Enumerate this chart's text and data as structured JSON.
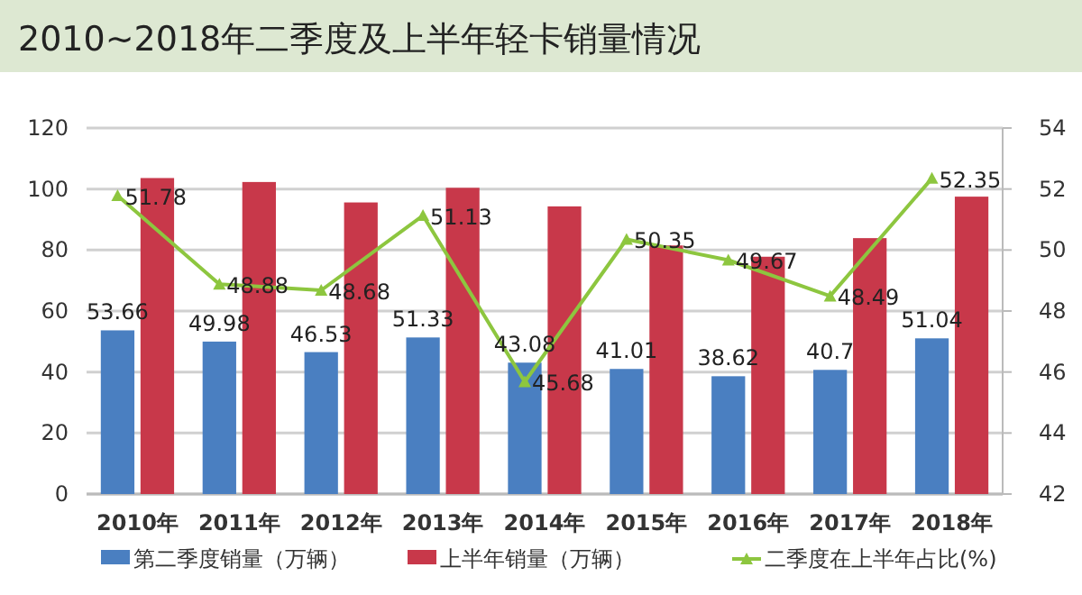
{
  "chart_data": {
    "type": "bar",
    "title": "2010~2018年二季度及上半年轻卡销量情况",
    "categories": [
      "2010年",
      "2011年",
      "2012年",
      "2013年",
      "2014年",
      "2015年",
      "2016年",
      "2017年",
      "2018年"
    ],
    "series": [
      {
        "name": "第二季度销量（万辆）",
        "color": "#4a7fc1",
        "values": [
          53.66,
          49.98,
          46.53,
          51.33,
          43.08,
          41.01,
          38.62,
          40.7,
          51.04
        ],
        "value_labels": [
          "53.66",
          "49.98",
          "46.53",
          "51.33",
          "43.08",
          "41.01",
          "38.62",
          "40.7",
          "51.04"
        ]
      },
      {
        "name": "上半年销量（万辆）",
        "color": "#c8384a",
        "values": [
          103.6,
          102.3,
          95.6,
          100.4,
          94.3,
          81.5,
          77.8,
          83.9,
          97.5
        ]
      },
      {
        "name": "二季度在上半年占比(%)",
        "type": "line",
        "axis": "y2",
        "color": "#8dc63f",
        "marker": "triangle",
        "values": [
          51.78,
          48.88,
          48.68,
          51.13,
          45.68,
          50.35,
          49.67,
          48.49,
          52.35
        ],
        "value_labels": [
          "51.78",
          "48.88",
          "48.68",
          "51.13",
          "45.68",
          "50.35",
          "49.67",
          "48.49",
          "52.35"
        ]
      }
    ],
    "ylim": [
      0,
      120
    ],
    "yticks": [
      0,
      20,
      40,
      60,
      80,
      100,
      120
    ],
    "y2lim": [
      42,
      54
    ],
    "y2ticks": [
      42,
      44,
      46,
      48,
      50,
      52,
      54
    ],
    "grid": "y",
    "legend": "bottom"
  }
}
